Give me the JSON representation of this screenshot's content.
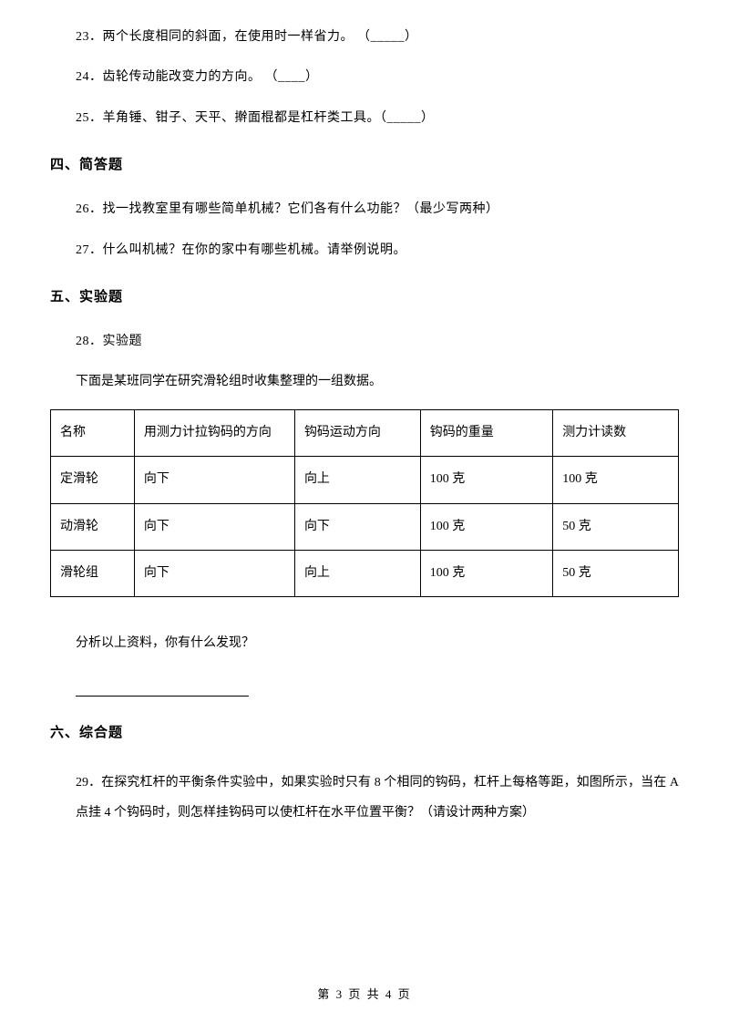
{
  "questions": {
    "q23": "23．两个长度相同的斜面，在使用时一样省力。  （_____）",
    "q24": "24．齿轮传动能改变力的方向。  （____）",
    "q25": "25．羊角锤、钳子、天平、擀面棍都是杠杆类工具。（_____）",
    "q26": "26．找一找教室里有哪些简单机械？它们各有什么功能？（最少写两种）",
    "q27": "27．什么叫机械？在你的家中有哪些机械。请举例说明。",
    "q28_title": "28．实验题",
    "q28_intro": "下面是某班同学在研究滑轮组时收集整理的一组数据。",
    "q28_analysis": "分析以上资料，你有什么发现？",
    "q29": "29．在探究杠杆的平衡条件实验中，如果实验时只有 8 个相同的钩码，杠杆上每格等距，如图所示，当在 A 点挂 4 个钩码时，则怎样挂钩码可以使杠杆在水平位置平衡？（请设计两种方案）"
  },
  "sections": {
    "s4": "四、简答题",
    "s5": "五、实验题",
    "s6": "六、综合题"
  },
  "table": {
    "headers": [
      "名称",
      "用测力计拉钩码的方向",
      "钩码运动方向",
      "钩码的重量",
      "测力计读数"
    ],
    "rows": [
      [
        "定滑轮",
        "向下",
        "向上",
        "100 克",
        "100 克"
      ],
      [
        "动滑轮",
        "向下",
        "向下",
        "100 克",
        "50 克"
      ],
      [
        "滑轮组",
        "向下",
        "向上",
        "100 克",
        "50 克"
      ]
    ]
  },
  "footer": "第 3 页 共 4 页"
}
